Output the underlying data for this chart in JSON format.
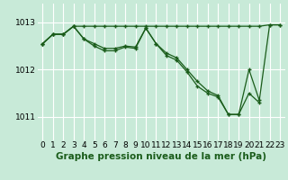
{
  "background_color": "#c8ead8",
  "plot_bg_color": "#c8ead8",
  "grid_color": "#ffffff",
  "line_color": "#1a5c1a",
  "xlabel": "Graphe pression niveau de la mer (hPa)",
  "xlabel_fontsize": 7.5,
  "tick_fontsize": 6.5,
  "ylim": [
    1010.5,
    1013.4
  ],
  "yticks": [
    1011,
    1012,
    1013
  ],
  "xlim": [
    -0.5,
    23.5
  ],
  "xticks": [
    0,
    1,
    2,
    3,
    4,
    5,
    6,
    7,
    8,
    9,
    10,
    11,
    12,
    13,
    14,
    15,
    16,
    17,
    18,
    19,
    20,
    21,
    22,
    23
  ],
  "series": [
    {
      "x": [
        0,
        1,
        2,
        3,
        4,
        5,
        6,
        7,
        8,
        9,
        10,
        11,
        12,
        13,
        14,
        15,
        16,
        17,
        18,
        19,
        20,
        21,
        22,
        23
      ],
      "y": [
        1012.55,
        1012.75,
        1012.75,
        1012.92,
        1012.92,
        1012.92,
        1012.92,
        1012.92,
        1012.92,
        1012.92,
        1012.92,
        1012.92,
        1012.92,
        1012.92,
        1012.92,
        1012.92,
        1012.92,
        1012.92,
        1012.92,
        1012.92,
        1012.92,
        1012.92,
        1012.95,
        1012.95
      ]
    },
    {
      "x": [
        0,
        1,
        2,
        3,
        4,
        5,
        6,
        7,
        8,
        9,
        10,
        11,
        12,
        13,
        14,
        15,
        16,
        17,
        18,
        19,
        20,
        21
      ],
      "y": [
        1012.55,
        1012.75,
        1012.75,
        1012.92,
        1012.65,
        1012.55,
        1012.45,
        1012.45,
        1012.5,
        1012.48,
        1012.88,
        1012.55,
        1012.35,
        1012.25,
        1012.0,
        1011.75,
        1011.55,
        1011.45,
        1011.05,
        1011.05,
        1011.5,
        1011.3
      ]
    },
    {
      "x": [
        0,
        1,
        2,
        3,
        4,
        5,
        6,
        7,
        8,
        9,
        10,
        11,
        12,
        13,
        14,
        15,
        16,
        17,
        18,
        19,
        20,
        21,
        22,
        23
      ],
      "y": [
        1012.55,
        1012.75,
        1012.75,
        1012.92,
        1012.65,
        1012.5,
        1012.4,
        1012.4,
        1012.48,
        1012.45,
        1012.88,
        1012.55,
        1012.3,
        1012.2,
        1011.95,
        1011.65,
        1011.5,
        1011.42,
        1011.05,
        1011.05,
        1012.0,
        1011.35,
        1012.95,
        1012.95
      ]
    }
  ]
}
